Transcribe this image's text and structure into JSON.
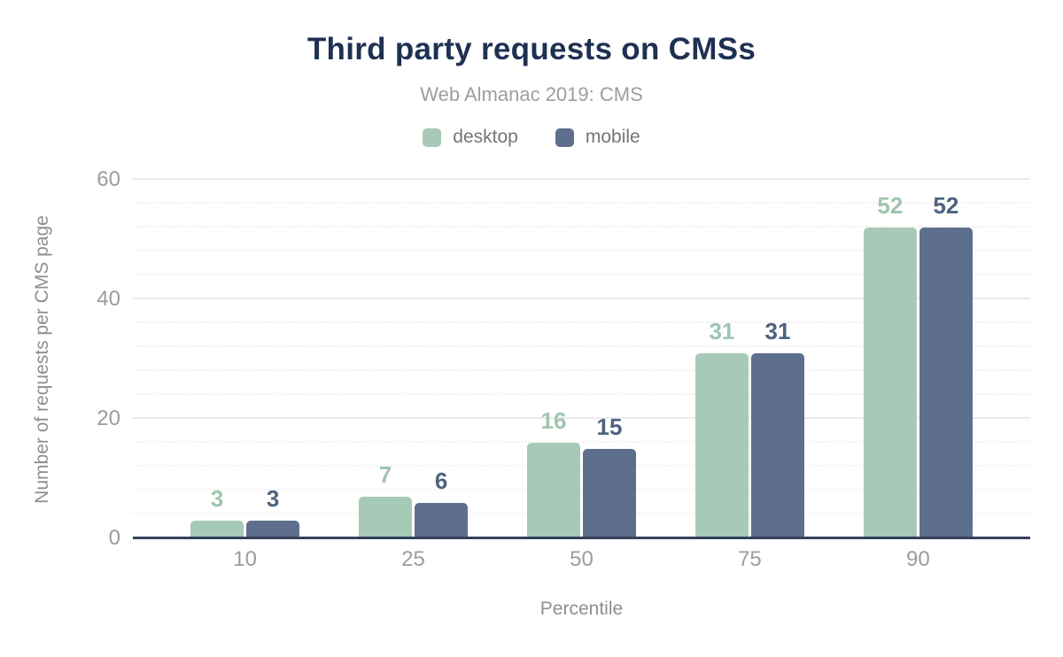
{
  "header": {
    "title": "Third party requests on CMSs",
    "subtitle": "Web Almanac 2019: CMS"
  },
  "legend": {
    "items": [
      {
        "label": "desktop",
        "color": "#a7c9b7"
      },
      {
        "label": "mobile",
        "color": "#5e6f8d"
      }
    ]
  },
  "chart_data": {
    "type": "bar",
    "title": "Third party requests on CMSs",
    "subtitle": "Web Almanac 2019: CMS",
    "categories": [
      "10",
      "25",
      "50",
      "75",
      "90"
    ],
    "series": [
      {
        "name": "desktop",
        "color": "#a7c9b7",
        "label_color": "#9fc5ae",
        "values": [
          3,
          7,
          16,
          31,
          52
        ]
      },
      {
        "name": "mobile",
        "color": "#5e6f8d",
        "label_color": "#4f6280",
        "values": [
          3,
          6,
          15,
          31,
          52
        ]
      }
    ],
    "xlabel": "Percentile",
    "ylabel": "Number of requests per CMS page",
    "ylim": [
      0,
      60
    ],
    "yticks": [
      0,
      20,
      40,
      60
    ],
    "minor_gridline_step": 4,
    "grid": true,
    "legend_position": "top",
    "colors": {
      "title": "#1f3152",
      "subtitle": "#9e9e9e",
      "legend_text": "#757575",
      "axis_title": "#8f8f8f",
      "tick_label": "#9c9c9c",
      "axis_line": "#33415c",
      "major_grid": "#ebebeb",
      "minor_grid": "#f2f2f2",
      "background": "#ffffff"
    }
  }
}
